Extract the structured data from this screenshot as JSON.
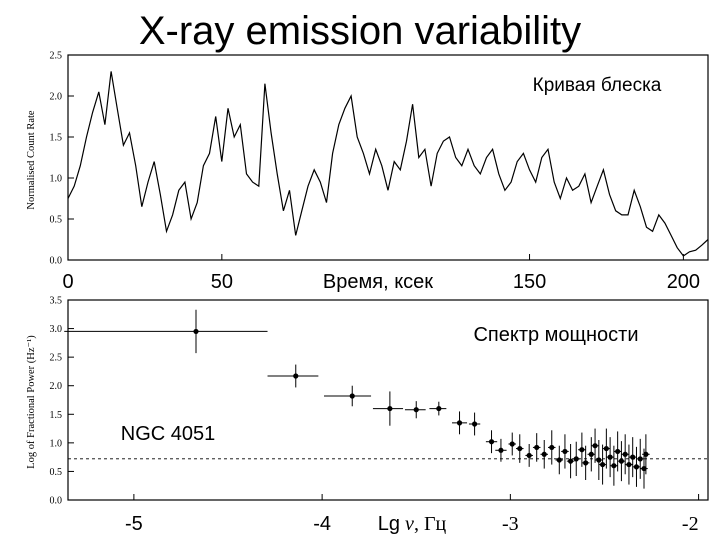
{
  "slide": {
    "title": "X-ray emission variability"
  },
  "chart_data": [
    {
      "type": "line",
      "label": "Кривая блеска",
      "ylabel": "Normalised Count Rate",
      "xlabel": "Время, ксек",
      "xlim": [
        0,
        208
      ],
      "ylim": [
        0,
        2.5
      ],
      "x_ticks": [
        "0",
        "50",
        "150",
        "200"
      ],
      "x_tick_values": [
        0,
        50,
        150,
        200
      ],
      "y_ticks": [
        "0.0",
        "0.5",
        "1.0",
        "1.5",
        "2.0",
        "2.5"
      ],
      "y_tick_values": [
        0,
        0.5,
        1.0,
        1.5,
        2.0,
        2.5
      ],
      "x": [
        0,
        2,
        4,
        6,
        8,
        10,
        12,
        14,
        16,
        18,
        20,
        22,
        24,
        26,
        28,
        30,
        32,
        34,
        36,
        38,
        40,
        42,
        44,
        46,
        48,
        50,
        52,
        54,
        56,
        58,
        60,
        62,
        64,
        66,
        68,
        70,
        72,
        74,
        76,
        78,
        80,
        82,
        84,
        86,
        88,
        90,
        92,
        94,
        96,
        98,
        100,
        102,
        104,
        106,
        108,
        110,
        112,
        114,
        116,
        118,
        120,
        122,
        124,
        126,
        128,
        130,
        132,
        134,
        136,
        138,
        140,
        142,
        144,
        146,
        148,
        150,
        152,
        154,
        156,
        158,
        160,
        162,
        164,
        166,
        168,
        170,
        172,
        174,
        176,
        178,
        180,
        182,
        184,
        186,
        188,
        190,
        192,
        194,
        196,
        198,
        200,
        202,
        204,
        206,
        208
      ],
      "y": [
        0.75,
        0.9,
        1.15,
        1.5,
        1.8,
        2.05,
        1.65,
        2.3,
        1.85,
        1.4,
        1.55,
        1.15,
        0.65,
        0.95,
        1.2,
        0.8,
        0.35,
        0.55,
        0.85,
        0.95,
        0.5,
        0.7,
        1.15,
        1.3,
        1.75,
        1.2,
        1.85,
        1.5,
        1.65,
        1.05,
        0.95,
        0.9,
        2.15,
        1.55,
        1.05,
        0.6,
        0.85,
        0.3,
        0.6,
        0.9,
        1.1,
        0.95,
        0.7,
        1.3,
        1.65,
        1.85,
        2.0,
        1.5,
        1.3,
        1.05,
        1.35,
        1.15,
        0.85,
        1.2,
        1.1,
        1.45,
        1.9,
        1.25,
        1.35,
        0.9,
        1.3,
        1.45,
        1.5,
        1.25,
        1.15,
        1.35,
        1.15,
        1.05,
        1.25,
        1.35,
        1.05,
        0.85,
        0.95,
        1.2,
        1.3,
        1.1,
        0.95,
        1.25,
        1.35,
        0.95,
        0.75,
        1.0,
        0.85,
        0.9,
        1.05,
        0.7,
        0.9,
        1.1,
        0.8,
        0.6,
        0.55,
        0.55,
        0.85,
        0.65,
        0.4,
        0.35,
        0.55,
        0.45,
        0.3,
        0.15,
        0.05,
        0.1,
        0.12,
        0.18,
        0.25
      ]
    },
    {
      "type": "scatter",
      "label": "Спектр мощности",
      "annotation": "NGC 4051",
      "ylabel": "Log of Fractional Power (Hz⁻¹)",
      "xlabel_prefix": "Lg",
      "xlabel_symbol": "ν",
      "xlabel_unit": ", Гц",
      "xlim": [
        -5.35,
        -1.95
      ],
      "ylim": [
        0,
        3.5
      ],
      "x_ticks": [
        "-5",
        "-4",
        "-3",
        "-2"
      ],
      "x_tick_values": [
        -5,
        -4,
        -3,
        -2
      ],
      "y_ticks": [
        "0.0",
        "0.5",
        "1.0",
        "1.5",
        "2.0",
        "2.5",
        "3.0",
        "3.5"
      ],
      "y_tick_values": [
        0,
        0.5,
        1.0,
        1.5,
        2.0,
        2.5,
        3.0,
        3.5
      ],
      "reference_line_y": 0.72,
      "points": [
        {
          "x": -4.67,
          "y": 2.95,
          "xerr_lo": 0.7,
          "xerr_hi": 0.38,
          "yerr": 0.38
        },
        {
          "x": -4.14,
          "y": 2.17,
          "xerr_lo": 0.15,
          "xerr_hi": 0.12,
          "yerr": 0.2
        },
        {
          "x": -3.84,
          "y": 1.82,
          "xerr_lo": 0.15,
          "xerr_hi": 0.1,
          "yerr": 0.18
        },
        {
          "x": -3.64,
          "y": 1.6,
          "xerr_lo": 0.09,
          "xerr_hi": 0.07,
          "yerr": 0.3
        },
        {
          "x": -3.5,
          "y": 1.58,
          "xerr_lo": 0.06,
          "xerr_hi": 0.05,
          "yerr": 0.15
        },
        {
          "x": -3.38,
          "y": 1.6,
          "xerr_lo": 0.05,
          "xerr_hi": 0.04,
          "yerr": 0.12
        },
        {
          "x": -3.27,
          "y": 1.35,
          "xerr_lo": 0.04,
          "xerr_hi": 0.04,
          "yerr": 0.2
        },
        {
          "x": -3.19,
          "y": 1.33,
          "xerr_lo": 0.03,
          "xerr_hi": 0.03,
          "yerr": 0.2
        },
        {
          "x": -3.1,
          "y": 1.02,
          "xerr_lo": 0.03,
          "xerr_hi": 0.03,
          "yerr": 0.2
        },
        {
          "x": -3.05,
          "y": 0.87,
          "xerr_lo": 0.03,
          "xerr_hi": 0.03,
          "yerr": 0.2
        },
        {
          "x": -2.99,
          "y": 0.98,
          "xerr_lo": 0.02,
          "xerr_hi": 0.02,
          "yerr": 0.2
        },
        {
          "x": -2.95,
          "y": 0.9,
          "xerr_lo": 0.02,
          "xerr_hi": 0.02,
          "yerr": 0.25
        },
        {
          "x": -2.9,
          "y": 0.78,
          "xerr_lo": 0.02,
          "xerr_hi": 0.02,
          "yerr": 0.2
        },
        {
          "x": -2.86,
          "y": 0.92,
          "xerr_lo": 0.02,
          "xerr_hi": 0.02,
          "yerr": 0.25
        },
        {
          "x": -2.82,
          "y": 0.8,
          "xerr_lo": 0.02,
          "xerr_hi": 0.02,
          "yerr": 0.25
        },
        {
          "x": -2.78,
          "y": 0.92,
          "xerr_lo": 0.02,
          "xerr_hi": 0.02,
          "yerr": 0.3
        },
        {
          "x": -2.74,
          "y": 0.7,
          "xerr_lo": 0.02,
          "xerr_hi": 0.02,
          "yerr": 0.25
        },
        {
          "x": -2.71,
          "y": 0.85,
          "xerr_lo": 0.02,
          "xerr_hi": 0.02,
          "yerr": 0.3
        },
        {
          "x": -2.68,
          "y": 0.68,
          "xerr_lo": 0.02,
          "xerr_hi": 0.02,
          "yerr": 0.3
        },
        {
          "x": -2.65,
          "y": 0.72,
          "xerr_lo": 0.02,
          "xerr_hi": 0.02,
          "yerr": 0.3
        },
        {
          "x": -2.62,
          "y": 0.88,
          "xerr_lo": 0.02,
          "xerr_hi": 0.02,
          "yerr": 0.3
        },
        {
          "x": -2.6,
          "y": 0.65,
          "xerr_lo": 0.02,
          "xerr_hi": 0.02,
          "yerr": 0.3
        },
        {
          "x": -2.57,
          "y": 0.8,
          "xerr_lo": 0.02,
          "xerr_hi": 0.02,
          "yerr": 0.3
        },
        {
          "x": -2.55,
          "y": 0.95,
          "xerr_lo": 0.02,
          "xerr_hi": 0.02,
          "yerr": 0.3
        },
        {
          "x": -2.53,
          "y": 0.7,
          "xerr_lo": 0.02,
          "xerr_hi": 0.02,
          "yerr": 0.35
        },
        {
          "x": -2.51,
          "y": 0.62,
          "xerr_lo": 0.02,
          "xerr_hi": 0.02,
          "yerr": 0.35
        },
        {
          "x": -2.49,
          "y": 0.9,
          "xerr_lo": 0.02,
          "xerr_hi": 0.02,
          "yerr": 0.35
        },
        {
          "x": -2.47,
          "y": 0.75,
          "xerr_lo": 0.02,
          "xerr_hi": 0.02,
          "yerr": 0.35
        },
        {
          "x": -2.45,
          "y": 0.6,
          "xerr_lo": 0.02,
          "xerr_hi": 0.02,
          "yerr": 0.35
        },
        {
          "x": -2.43,
          "y": 0.85,
          "xerr_lo": 0.02,
          "xerr_hi": 0.02,
          "yerr": 0.35
        },
        {
          "x": -2.41,
          "y": 0.68,
          "xerr_lo": 0.02,
          "xerr_hi": 0.02,
          "yerr": 0.35
        },
        {
          "x": -2.39,
          "y": 0.8,
          "xerr_lo": 0.02,
          "xerr_hi": 0.02,
          "yerr": 0.35
        },
        {
          "x": -2.37,
          "y": 0.62,
          "xerr_lo": 0.02,
          "xerr_hi": 0.02,
          "yerr": 0.35
        },
        {
          "x": -2.35,
          "y": 0.75,
          "xerr_lo": 0.02,
          "xerr_hi": 0.02,
          "yerr": 0.35
        },
        {
          "x": -2.33,
          "y": 0.58,
          "xerr_lo": 0.02,
          "xerr_hi": 0.02,
          "yerr": 0.35
        },
        {
          "x": -2.31,
          "y": 0.72,
          "xerr_lo": 0.02,
          "xerr_hi": 0.02,
          "yerr": 0.35
        },
        {
          "x": -2.29,
          "y": 0.55,
          "xerr_lo": 0.02,
          "xerr_hi": 0.02,
          "yerr": 0.35
        },
        {
          "x": -2.28,
          "y": 0.8,
          "xerr_lo": 0.02,
          "xerr_hi": 0.02,
          "yerr": 0.35
        }
      ]
    }
  ]
}
